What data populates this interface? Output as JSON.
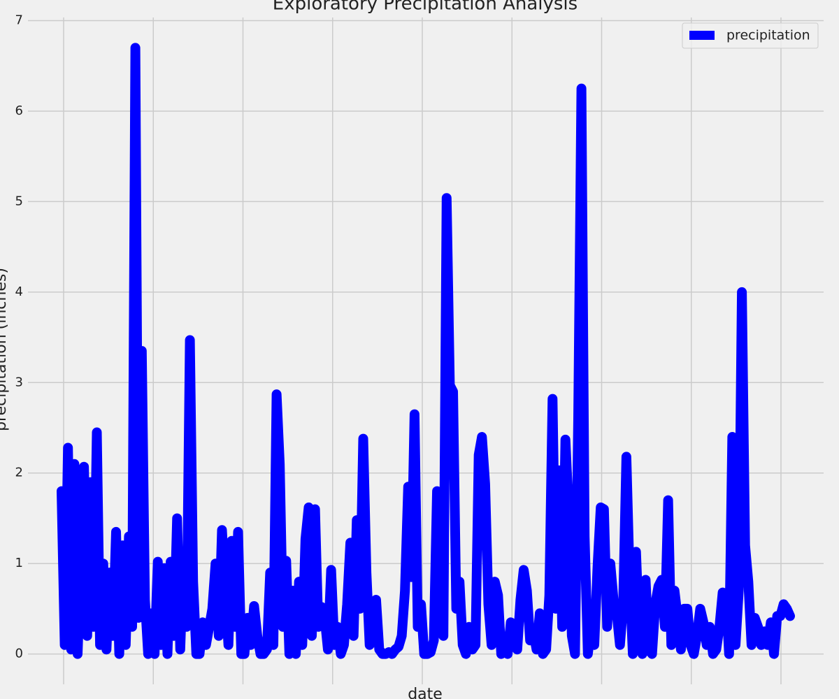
{
  "chart_data": {
    "type": "line",
    "title": "Exploratory Precipitation Analysis",
    "xlabel": "date",
    "ylabel": "precipitation (inches)",
    "ylim": [
      -0.335,
      7.035
    ],
    "yticks": [
      0,
      1,
      2,
      3,
      4,
      5,
      6,
      7
    ],
    "grid": true,
    "legend": "upper right",
    "series": [
      {
        "name": "precipitation",
        "color": "#0000ff",
        "values": [
          1.8,
          0.1,
          2.28,
          0.05,
          2.1,
          0.0,
          1.0,
          2.07,
          0.2,
          1.9,
          0.3,
          2.45,
          0.1,
          1.0,
          0.05,
          0.9,
          0.2,
          1.35,
          0.0,
          1.2,
          0.1,
          1.3,
          0.3,
          6.7,
          0.4,
          3.35,
          0.6,
          0.0,
          0.45,
          0.0,
          1.02,
          0.1,
          0.95,
          0.0,
          1.02,
          0.2,
          1.5,
          0.05,
          1.05,
          0.3,
          3.47,
          0.8,
          0.0,
          0.0,
          0.35,
          0.1,
          0.3,
          0.5,
          1.0,
          0.2,
          1.37,
          0.7,
          0.1,
          1.25,
          0.3,
          1.35,
          0.0,
          0.0,
          0.4,
          0.1,
          0.53,
          0.2,
          0.0,
          0.0,
          0.05,
          0.9,
          0.1,
          2.87,
          2.1,
          0.3,
          1.03,
          0.0,
          0.7,
          0.0,
          0.8,
          0.1,
          1.27,
          1.62,
          0.2,
          1.6,
          0.3,
          0.52,
          0.4,
          0.05,
          0.93,
          0.1,
          0.3,
          0.0,
          0.1,
          0.55,
          1.23,
          0.2,
          1.48,
          0.5,
          2.38,
          0.9,
          0.1,
          0.45,
          0.6,
          0.05,
          0.0,
          0.0,
          0.02,
          0.0,
          0.05,
          0.08,
          0.2,
          0.7,
          1.85,
          0.85,
          2.65,
          0.3,
          0.55,
          0.0,
          0.0,
          0.02,
          0.15,
          1.8,
          1.05,
          0.2,
          5.04,
          2.97,
          2.9,
          0.5,
          0.8,
          0.1,
          0.0,
          0.3,
          0.05,
          0.1,
          2.2,
          2.4,
          1.88,
          0.55,
          0.1,
          0.8,
          0.65,
          0.0,
          0.05,
          0.0,
          0.35,
          0.1,
          0.05,
          0.6,
          0.93,
          0.7,
          0.15,
          0.25,
          0.05,
          0.45,
          0.0,
          0.05,
          0.65,
          2.82,
          0.5,
          2.03,
          0.3,
          2.37,
          1.6,
          0.2,
          0.0,
          2.6,
          6.25,
          1.3,
          0.0,
          0.3,
          0.1,
          0.96,
          1.62,
          1.6,
          0.3,
          1.0,
          0.6,
          0.45,
          0.1,
          0.55,
          2.18,
          0.85,
          0.0,
          1.13,
          0.2,
          0.0,
          0.82,
          0.05,
          0.0,
          0.55,
          0.75,
          0.82,
          0.3,
          1.7,
          0.1,
          0.7,
          0.4,
          0.05,
          0.5,
          0.5,
          0.1,
          0.0,
          0.2,
          0.5,
          0.35,
          0.1,
          0.3,
          0.0,
          0.05,
          0.3,
          0.68,
          0.65,
          0.0,
          2.4,
          0.1,
          0.7,
          4.0,
          1.2,
          0.8,
          0.1,
          0.4,
          0.3,
          0.1,
          0.25,
          0.1,
          0.35,
          0.0,
          0.42,
          0.42,
          0.55,
          0.5,
          0.42
        ]
      }
    ]
  }
}
